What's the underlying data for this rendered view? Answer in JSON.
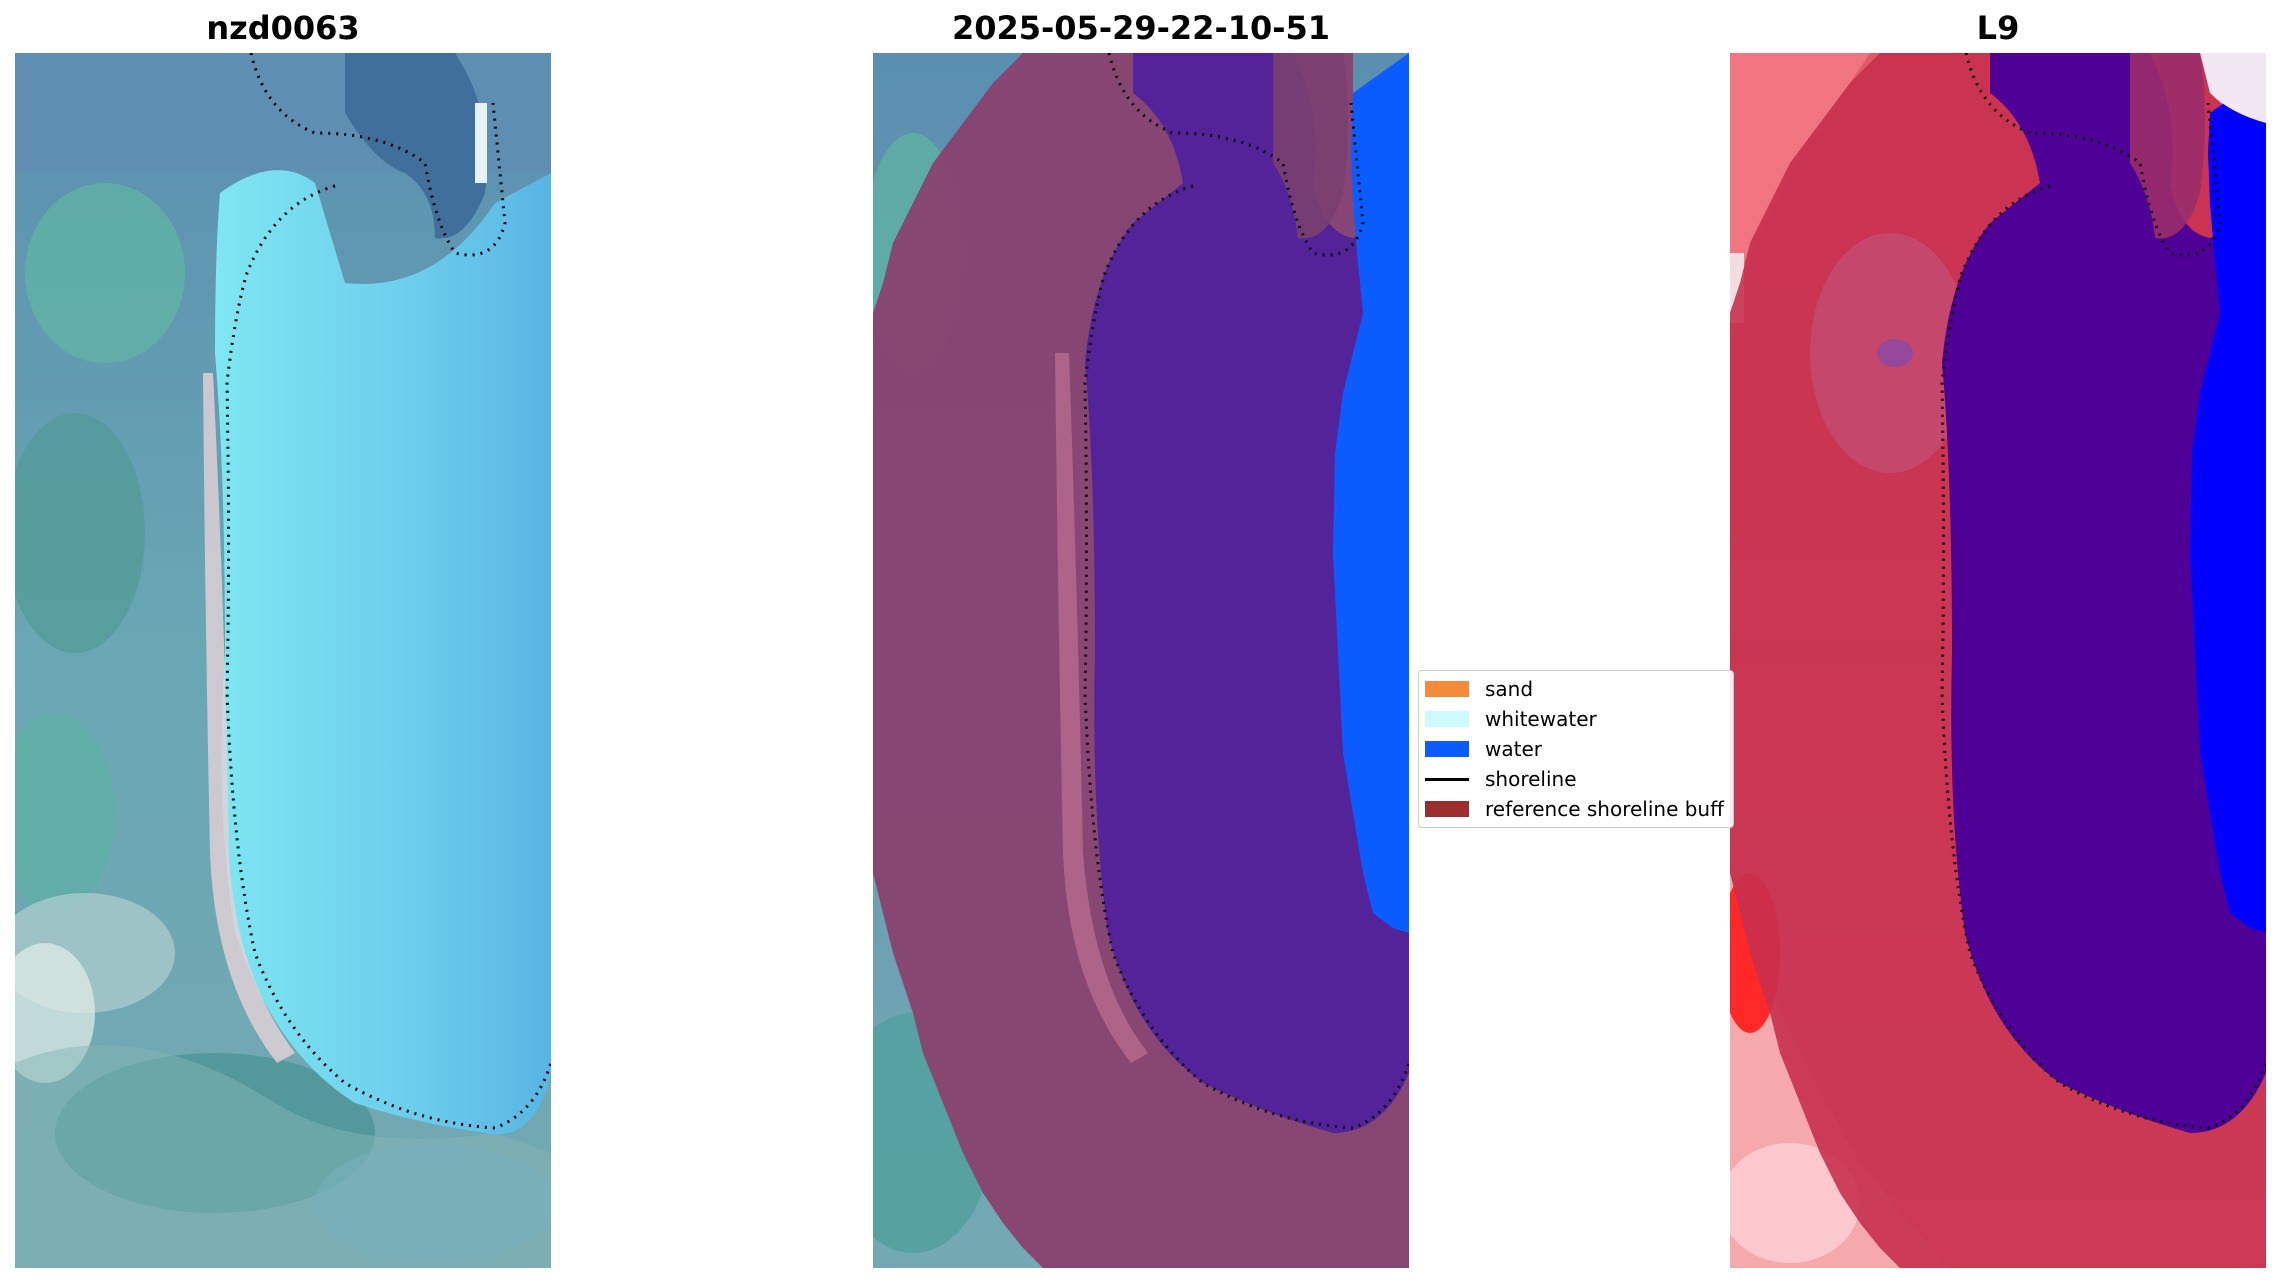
{
  "panels": [
    {
      "title": "nzd0063"
    },
    {
      "title": "2025-05-29-22-10-51"
    },
    {
      "title": "L9"
    }
  ],
  "legend": {
    "items": [
      {
        "label": "sand",
        "kind": "patch",
        "color": "#f58a3b"
      },
      {
        "label": "whitewater",
        "kind": "patch",
        "color": "#ccfaff"
      },
      {
        "label": "water",
        "kind": "patch",
        "color": "#0a5cff"
      },
      {
        "label": "shoreline",
        "kind": "line",
        "color": "#000000"
      },
      {
        "label": "reference shoreline buff",
        "kind": "patch",
        "color": "#9b2d2f"
      }
    ]
  },
  "colors": {
    "water_class": "#0a5cff",
    "buffer_overlay": "#8c2a5a",
    "water_overlay_purple": "#54239a",
    "l9_land": "#c8304f",
    "l9_water": "#4f0096",
    "l9_ocean": "#0000ff"
  }
}
